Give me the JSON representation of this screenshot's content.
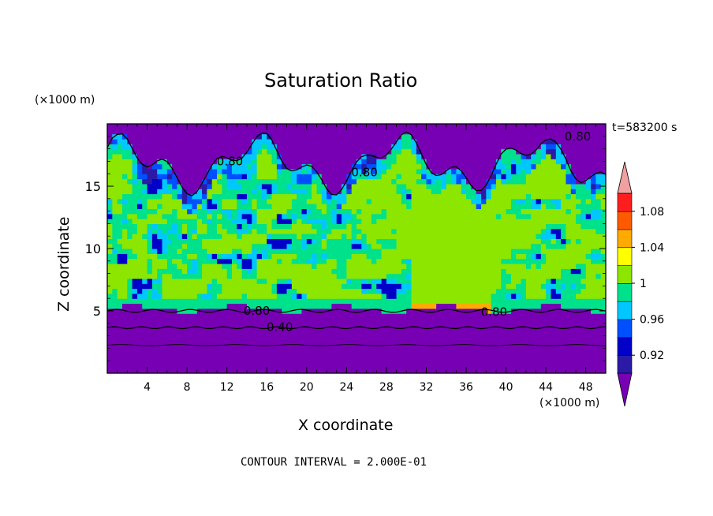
{
  "chart_data": {
    "type": "contour",
    "title": "Saturation Ratio",
    "xlabel": "X coordinate",
    "ylabel": "Z coordinate",
    "x_unit_label": "(×1000 m)",
    "y_unit_label": "(×1000 m)",
    "time_label": "t=583200 s",
    "footer": "CONTOUR INTERVAL = 2.000E-01",
    "xlim": [
      0,
      50
    ],
    "ylim": [
      0,
      20
    ],
    "x_ticks": [
      4,
      8,
      12,
      16,
      20,
      24,
      28,
      32,
      36,
      40,
      44,
      48
    ],
    "x_tick_labels": [
      "4",
      "8",
      "12",
      "16",
      "20",
      "24",
      "28",
      "32",
      "36",
      "40",
      "44",
      "48"
    ],
    "y_ticks": [
      5,
      10,
      15
    ],
    "y_tick_labels": [
      "5",
      "10",
      "15"
    ],
    "colorbar": {
      "levels": [
        0.9,
        0.92,
        0.94,
        0.96,
        0.98,
        1.0,
        1.02,
        1.04,
        1.06,
        1.08,
        1.1
      ],
      "colors": [
        "#7800b4",
        "#2a1aa6",
        "#0000c8",
        "#0050ff",
        "#00c8ff",
        "#00e18c",
        "#8ce600",
        "#ffff00",
        "#ffaa00",
        "#ff5a00",
        "#ff1e1e",
        "#f0a0a0"
      ],
      "tick_values": [
        0.92,
        0.96,
        1,
        1.04,
        1.08
      ],
      "tick_labels": [
        "0.92",
        "0.96",
        "1",
        "1.04",
        "1.08"
      ],
      "extend": "both"
    },
    "contour_labels": [
      {
        "text": "0.80",
        "x": 12.3,
        "z": 17.0
      },
      {
        "text": "0.80",
        "x": 25.8,
        "z": 16.1
      },
      {
        "text": "0.80",
        "x": 47.2,
        "z": 19.0
      },
      {
        "text": "0.80",
        "x": 15.0,
        "z": 5.0
      },
      {
        "text": "0.80",
        "x": 38.8,
        "z": 4.9
      },
      {
        "text": "0.40",
        "x": 17.3,
        "z": 3.7
      }
    ]
  }
}
